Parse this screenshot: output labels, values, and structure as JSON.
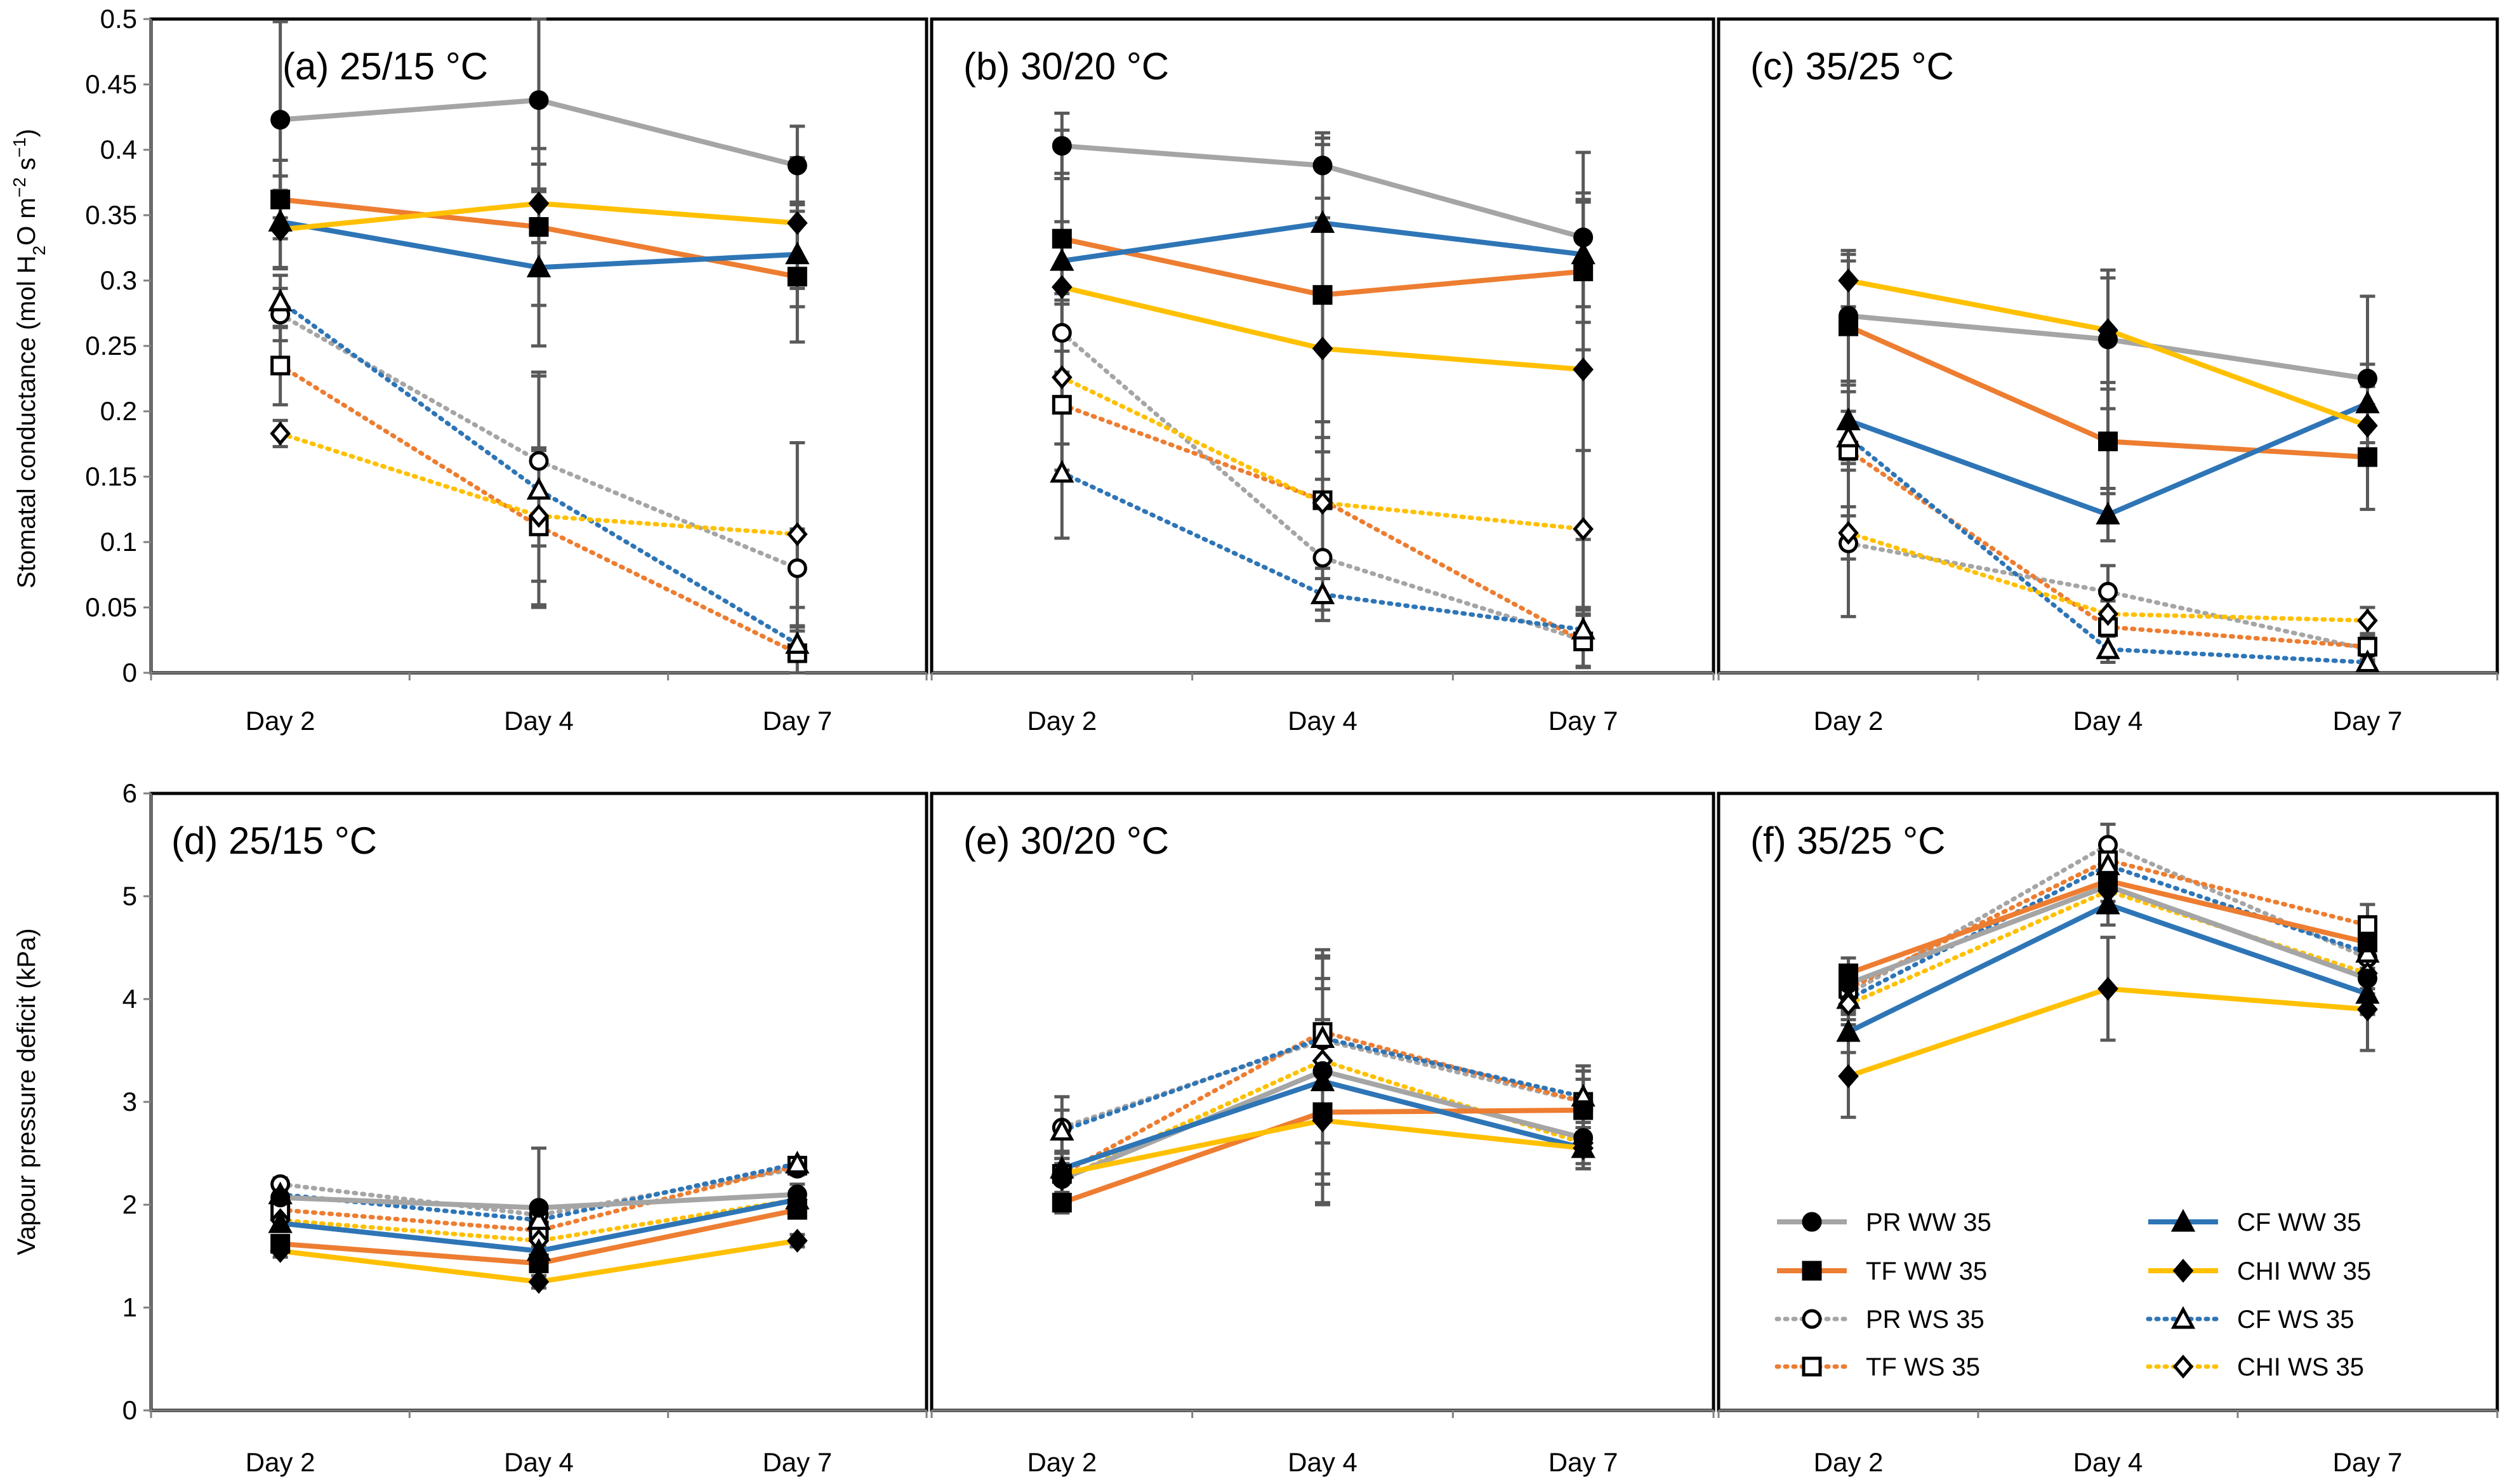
{
  "chart_data": [
    {
      "id": "a",
      "type": "line",
      "title": "(a) 25/15 °C",
      "categories": [
        "Day 2",
        "Day 4",
        "Day 7"
      ],
      "ylim": [
        0,
        0.5
      ],
      "yticks": [
        "0",
        "0.05",
        "0.1",
        "0.15",
        "0.2",
        "0.25",
        "0.3",
        "0.35",
        "0.4",
        "0.45",
        "0.5"
      ],
      "ylabel_parts": [
        "Stomatal conductance (mol H",
        "2",
        "O m",
        "−2",
        " s",
        "−1",
        ")"
      ],
      "series": [
        {
          "name": "PR WW 35",
          "values": [
            0.423,
            0.438,
            0.388
          ],
          "err": [
            0.075,
            0.07,
            0.03
          ]
        },
        {
          "name": "TF WW 35",
          "values": [
            0.362,
            0.341,
            0.303
          ],
          "err": [
            0.03,
            0.06,
            0.05
          ]
        },
        {
          "name": "CF WW 35",
          "values": [
            0.345,
            0.31,
            0.32
          ],
          "err": [
            0.035,
            0.06,
            0.04
          ]
        },
        {
          "name": "CHI WW 35",
          "values": [
            0.339,
            0.359,
            0.344
          ],
          "err": [
            0.03,
            0.03,
            0.05
          ]
        },
        {
          "name": "PR WS 35",
          "values": [
            0.274,
            0.162,
            0.08
          ],
          "err": [
            0.02,
            0.065,
            0.03
          ]
        },
        {
          "name": "TF WS 35",
          "values": [
            0.235,
            0.112,
            0.015
          ],
          "err": [
            0.03,
            0.06,
            0.02
          ]
        },
        {
          "name": "CF WS 35",
          "values": [
            0.284,
            0.14,
            0.022
          ],
          "err": [
            0.02,
            0.09,
            0.01
          ]
        },
        {
          "name": "CHI WS 35",
          "values": [
            0.183,
            0.12,
            0.106
          ],
          "err": [
            0.01,
            0.05,
            0.07
          ]
        }
      ]
    },
    {
      "id": "b",
      "type": "line",
      "title": "(b) 30/20 °C",
      "categories": [
        "Day 2",
        "Day 4",
        "Day 7"
      ],
      "ylim": [
        0,
        0.5
      ],
      "series": [
        {
          "name": "PR WW 35",
          "values": [
            0.403,
            0.388,
            0.333
          ],
          "err": [
            0.025,
            0.025,
            0.065
          ]
        },
        {
          "name": "TF WW 35",
          "values": [
            0.332,
            0.289,
            0.307
          ],
          "err": [
            0.05,
            0.12,
            0.06
          ]
        },
        {
          "name": "CF WW 35",
          "values": [
            0.315,
            0.344,
            0.32
          ],
          "err": [
            0.03,
            0.06,
            0.04
          ]
        },
        {
          "name": "CHI WW 35",
          "values": [
            0.295,
            0.248,
            0.232
          ],
          "err": [
            0.12,
            0.1,
            0.13
          ]
        },
        {
          "name": "PR WS 35",
          "values": [
            0.26,
            0.088,
            0.025
          ],
          "err": [
            0.03,
            0.04,
            0.02
          ]
        },
        {
          "name": "TF WS 35",
          "values": [
            0.205,
            0.132,
            0.024
          ],
          "err": [
            0.05,
            0.06,
            0.02
          ]
        },
        {
          "name": "CF WS 35",
          "values": [
            0.153,
            0.06,
            0.033
          ],
          "err": [
            0.05,
            0.02,
            0.015
          ]
        },
        {
          "name": "CHI WS 35",
          "values": [
            0.226,
            0.13,
            0.11
          ],
          "err": [
            0.02,
            0.05,
            0.06
          ]
        }
      ]
    },
    {
      "id": "c",
      "type": "line",
      "title": "(c) 35/25 °C",
      "categories": [
        "Day 2",
        "Day 4",
        "Day 7"
      ],
      "ylim": [
        0,
        0.5
      ],
      "series": [
        {
          "name": "PR WW 35",
          "values": [
            0.273,
            0.255,
            0.225
          ],
          "err": [
            0.05,
            0.053,
            0.063
          ]
        },
        {
          "name": "TF WW 35",
          "values": [
            0.265,
            0.177,
            0.165
          ],
          "err": [
            0.05,
            0.04,
            0.04
          ]
        },
        {
          "name": "CF WW 35",
          "values": [
            0.193,
            0.121,
            0.206
          ],
          "err": [
            0.03,
            0.02,
            0.03
          ]
        },
        {
          "name": "CHI WW 35",
          "values": [
            0.3,
            0.262,
            0.189
          ],
          "err": [
            0.02,
            0.04,
            0.03
          ]
        },
        {
          "name": "PR WS 35",
          "values": [
            0.099,
            0.062,
            0.018
          ],
          "err": [
            0.056,
            0.02,
            0.01
          ]
        },
        {
          "name": "TF WS 35",
          "values": [
            0.17,
            0.035,
            0.02
          ],
          "err": [
            0.05,
            0.02,
            0.01
          ]
        },
        {
          "name": "CF WS 35",
          "values": [
            0.18,
            0.018,
            0.008
          ],
          "err": [
            0.02,
            0.01,
            0.005
          ]
        },
        {
          "name": "CHI WS 35",
          "values": [
            0.107,
            0.045,
            0.04
          ],
          "err": [
            0.02,
            0.01,
            0.01
          ]
        }
      ]
    },
    {
      "id": "d",
      "type": "line",
      "title": "(d) 25/15 °C",
      "categories": [
        "Day 2",
        "Day 4",
        "Day 7"
      ],
      "ylim": [
        0,
        6
      ],
      "yticks": [
        "0",
        "1",
        "2",
        "3",
        "4",
        "5",
        "6"
      ],
      "ylabel": "Vapour pressure deficit (kPa)",
      "series": [
        {
          "name": "PR WW 35",
          "values": [
            2.07,
            1.97,
            2.1
          ],
          "err": [
            0.1,
            0.58,
            0.1
          ]
        },
        {
          "name": "TF WW 35",
          "values": [
            1.62,
            1.43,
            1.95
          ],
          "err": [
            0.08,
            0.08,
            0.08
          ]
        },
        {
          "name": "CF WW 35",
          "values": [
            1.82,
            1.55,
            2.05
          ],
          "err": [
            0.08,
            0.08,
            0.08
          ]
        },
        {
          "name": "CHI WW 35",
          "values": [
            1.55,
            1.25,
            1.65
          ],
          "err": [
            0.06,
            0.06,
            0.06
          ]
        },
        {
          "name": "PR WS 35",
          "values": [
            2.2,
            1.9,
            2.35
          ],
          "err": [
            0.06,
            0.06,
            0.06
          ]
        },
        {
          "name": "TF WS 35",
          "values": [
            1.95,
            1.75,
            2.38
          ],
          "err": [
            0.06,
            0.06,
            0.06
          ]
        },
        {
          "name": "CF WS 35",
          "values": [
            2.1,
            1.85,
            2.4
          ],
          "err": [
            0.06,
            0.06,
            0.06
          ]
        },
        {
          "name": "CHI WS 35",
          "values": [
            1.85,
            1.65,
            2.05
          ],
          "err": [
            0.06,
            0.06,
            0.06
          ]
        }
      ]
    },
    {
      "id": "e",
      "type": "line",
      "title": "(e) 30/20 °C",
      "categories": [
        "Day 2",
        "Day 4",
        "Day 7"
      ],
      "ylim": [
        0,
        6
      ],
      "series": [
        {
          "name": "PR WW 35",
          "values": [
            2.25,
            3.3,
            2.65
          ],
          "err": [
            0.15,
            1.1,
            0.3
          ]
        },
        {
          "name": "TF WW 35",
          "values": [
            2.02,
            2.9,
            2.92
          ],
          "err": [
            0.1,
            0.9,
            0.3
          ]
        },
        {
          "name": "CF WW 35",
          "values": [
            2.35,
            3.2,
            2.55
          ],
          "err": [
            0.1,
            0.9,
            0.2
          ]
        },
        {
          "name": "CHI WW 35",
          "values": [
            2.3,
            2.82,
            2.55
          ],
          "err": [
            0.1,
            0.8,
            0.2
          ]
        },
        {
          "name": "PR WS 35",
          "values": [
            2.75,
            3.6,
            3.0
          ],
          "err": [
            0.3,
            0.8,
            0.3
          ]
        },
        {
          "name": "TF WS 35",
          "values": [
            2.3,
            3.68,
            3.0
          ],
          "err": [
            0.2,
            0.8,
            0.3
          ]
        },
        {
          "name": "CF WS 35",
          "values": [
            2.72,
            3.62,
            3.05
          ],
          "err": [
            0.2,
            0.8,
            0.3
          ]
        },
        {
          "name": "CHI WS 35",
          "values": [
            2.25,
            3.4,
            2.6
          ],
          "err": [
            0.2,
            0.8,
            0.2
          ]
        }
      ]
    },
    {
      "id": "f",
      "type": "line",
      "title": "(f) 35/25 °C",
      "categories": [
        "Day 2",
        "Day 4",
        "Day 7"
      ],
      "ylim": [
        0,
        6
      ],
      "series": [
        {
          "name": "PR WW 35",
          "values": [
            4.15,
            5.1,
            4.2
          ],
          "err": [
            0.15,
            0.2,
            0.3
          ]
        },
        {
          "name": "TF WW 35",
          "values": [
            4.25,
            5.15,
            4.55
          ],
          "err": [
            0.15,
            0.2,
            0.2
          ]
        },
        {
          "name": "CF WW 35",
          "values": [
            3.68,
            4.92,
            4.05
          ],
          "err": [
            0.2,
            0.2,
            0.2
          ]
        },
        {
          "name": "CHI WW 35",
          "values": [
            3.25,
            4.1,
            3.9
          ],
          "err": [
            0.4,
            0.5,
            0.4
          ]
        },
        {
          "name": "PR WS 35",
          "values": [
            4.05,
            5.5,
            4.4
          ],
          "err": [
            0.2,
            0.2,
            0.3
          ]
        },
        {
          "name": "TF WS 35",
          "values": [
            4.1,
            5.35,
            4.72
          ],
          "err": [
            0.2,
            0.2,
            0.2
          ]
        },
        {
          "name": "CF WS 35",
          "values": [
            4.0,
            5.3,
            4.45
          ],
          "err": [
            0.2,
            0.2,
            0.2
          ]
        },
        {
          "name": "CHI WS 35",
          "values": [
            3.95,
            5.05,
            4.25
          ],
          "err": [
            0.2,
            0.2,
            0.2
          ]
        }
      ]
    }
  ],
  "legend": {
    "placement": "bottom-right of panel f",
    "entries": [
      {
        "name": "PR WW 35"
      },
      {
        "name": "CF WW 35"
      },
      {
        "name": "TF WW 35"
      },
      {
        "name": "CHI WW 35"
      },
      {
        "name": "PR WS 35"
      },
      {
        "name": "CF WS 35"
      },
      {
        "name": "TF WS 35"
      },
      {
        "name": "CHI WS 35"
      }
    ]
  },
  "styles": {
    "PR WW 35": {
      "color": "#a5a5a5",
      "dash": false,
      "marker": "circle",
      "fill": "#000000"
    },
    "TF WW 35": {
      "color": "#ed7d31",
      "dash": false,
      "marker": "square",
      "fill": "#000000"
    },
    "CF WW 35": {
      "color": "#2e75b6",
      "dash": false,
      "marker": "triangle",
      "fill": "#000000"
    },
    "CHI WW 35": {
      "color": "#ffc000",
      "dash": false,
      "marker": "diamond",
      "fill": "#000000"
    },
    "PR WS 35": {
      "color": "#a5a5a5",
      "dash": true,
      "marker": "circle",
      "fill": "#ffffff"
    },
    "TF WS 35": {
      "color": "#ed7d31",
      "dash": true,
      "marker": "square",
      "fill": "#ffffff"
    },
    "CF WS 35": {
      "color": "#2e75b6",
      "dash": true,
      "marker": "triangle",
      "fill": "#ffffff"
    },
    "CHI WS 35": {
      "color": "#ffc000",
      "dash": true,
      "marker": "diamond",
      "fill": "#ffffff"
    }
  },
  "errorbar_color": "#595959"
}
